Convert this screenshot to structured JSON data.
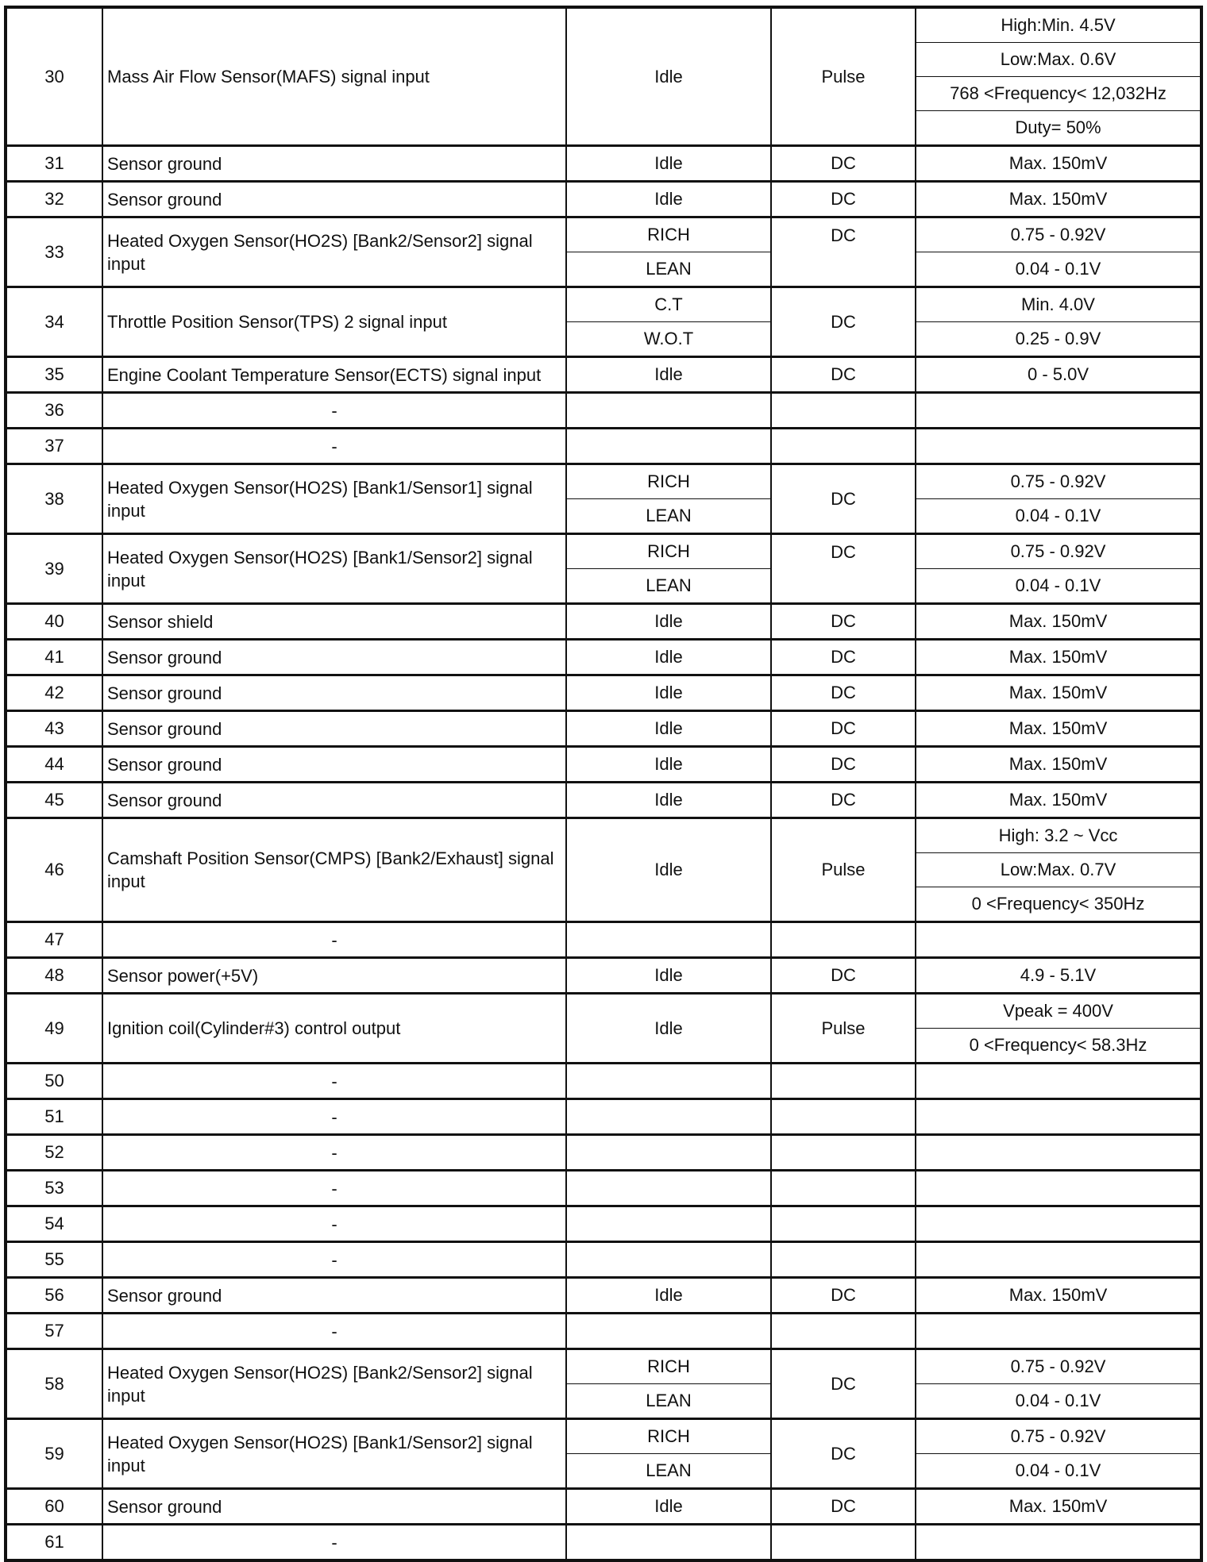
{
  "rows": [
    {
      "pin": "30",
      "desc": "Mass Air Flow Sensor(MAFS) signal input",
      "cond": [
        "Idle"
      ],
      "type": [
        "Pulse"
      ],
      "values": [
        "High:Min. 4.5V",
        "Low:Max. 0.6V",
        "768 <Frequency< 12,032Hz",
        "Duty= 50%"
      ]
    },
    {
      "pin": "31",
      "desc": "Sensor ground",
      "cond": [
        "Idle"
      ],
      "type": [
        "DC"
      ],
      "values": [
        "Max. 150mV"
      ]
    },
    {
      "pin": "32",
      "desc": "Sensor ground",
      "cond": [
        "Idle"
      ],
      "type": [
        "DC"
      ],
      "values": [
        "Max. 150mV"
      ]
    },
    {
      "pin": "33",
      "desc": "Heated Oxygen Sensor(HO2S) [Bank2/Sensor2] signal input",
      "cond": [
        "RICH",
        "LEAN"
      ],
      "type": [
        "DC",
        ""
      ],
      "values": [
        "0.75 - 0.92V",
        "0.04 - 0.1V"
      ]
    },
    {
      "pin": "34",
      "desc": "Throttle Position Sensor(TPS) 2 signal input",
      "cond": [
        "C.T",
        "W.O.T"
      ],
      "type": [
        "DC"
      ],
      "values": [
        "Min. 4.0V",
        "0.25 - 0.9V"
      ]
    },
    {
      "pin": "35",
      "desc": "Engine Coolant Temperature Sensor(ECTS) signal input",
      "cond": [
        "Idle"
      ],
      "type": [
        "DC"
      ],
      "values": [
        "0 - 5.0V"
      ]
    },
    {
      "pin": "36",
      "desc": "-",
      "cond": [
        ""
      ],
      "type": [
        ""
      ],
      "values": [
        ""
      ]
    },
    {
      "pin": "37",
      "desc": "-",
      "cond": [
        ""
      ],
      "type": [
        ""
      ],
      "values": [
        ""
      ]
    },
    {
      "pin": "38",
      "desc": "Heated Oxygen Sensor(HO2S) [Bank1/Sensor1] signal input",
      "cond": [
        "RICH",
        "LEAN"
      ],
      "type": [
        "DC"
      ],
      "values": [
        "0.75 - 0.92V",
        "0.04 - 0.1V"
      ]
    },
    {
      "pin": "39",
      "desc": "Heated Oxygen Sensor(HO2S) [Bank1/Sensor2] signal input",
      "cond": [
        "RICH",
        "LEAN"
      ],
      "type": [
        "DC",
        ""
      ],
      "values": [
        "0.75 - 0.92V",
        "0.04 - 0.1V"
      ]
    },
    {
      "pin": "40",
      "desc": "Sensor shield",
      "cond": [
        "Idle"
      ],
      "type": [
        "DC"
      ],
      "values": [
        "Max. 150mV"
      ]
    },
    {
      "pin": "41",
      "desc": "Sensor ground",
      "cond": [
        "Idle"
      ],
      "type": [
        "DC"
      ],
      "values": [
        "Max. 150mV"
      ]
    },
    {
      "pin": "42",
      "desc": "Sensor ground",
      "cond": [
        "Idle"
      ],
      "type": [
        "DC"
      ],
      "values": [
        "Max. 150mV"
      ]
    },
    {
      "pin": "43",
      "desc": "Sensor ground",
      "cond": [
        "Idle"
      ],
      "type": [
        "DC"
      ],
      "values": [
        "Max. 150mV"
      ]
    },
    {
      "pin": "44",
      "desc": "Sensor ground",
      "cond": [
        "Idle"
      ],
      "type": [
        "DC"
      ],
      "values": [
        "Max. 150mV"
      ]
    },
    {
      "pin": "45",
      "desc": "Sensor ground",
      "cond": [
        "Idle"
      ],
      "type": [
        "DC"
      ],
      "values": [
        "Max. 150mV"
      ]
    },
    {
      "pin": "46",
      "desc": "Camshaft Position Sensor(CMPS) [Bank2/Exhaust] signal input",
      "cond": [
        "Idle"
      ],
      "type": [
        "Pulse"
      ],
      "values": [
        "High: 3.2 ~ Vcc",
        "Low:Max. 0.7V",
        "0 <Frequency< 350Hz"
      ]
    },
    {
      "pin": "47",
      "desc": "-",
      "cond": [
        ""
      ],
      "type": [
        ""
      ],
      "values": [
        ""
      ]
    },
    {
      "pin": "48",
      "desc": "Sensor power(+5V)",
      "cond": [
        "Idle"
      ],
      "type": [
        "DC"
      ],
      "values": [
        "4.9 - 5.1V"
      ]
    },
    {
      "pin": "49",
      "desc": "Ignition coil(Cylinder#3) control output",
      "cond": [
        "Idle"
      ],
      "type": [
        "Pulse"
      ],
      "values": [
        "Vpeak = 400V",
        "0 <Frequency< 58.3Hz"
      ]
    },
    {
      "pin": "50",
      "desc": "-",
      "cond": [
        ""
      ],
      "type": [
        ""
      ],
      "values": [
        ""
      ]
    },
    {
      "pin": "51",
      "desc": "-",
      "cond": [
        ""
      ],
      "type": [
        ""
      ],
      "values": [
        ""
      ]
    },
    {
      "pin": "52",
      "desc": "-",
      "cond": [
        ""
      ],
      "type": [
        ""
      ],
      "values": [
        ""
      ]
    },
    {
      "pin": "53",
      "desc": "-",
      "cond": [
        ""
      ],
      "type": [
        ""
      ],
      "values": [
        ""
      ]
    },
    {
      "pin": "54",
      "desc": "-",
      "cond": [
        ""
      ],
      "type": [
        ""
      ],
      "values": [
        ""
      ]
    },
    {
      "pin": "55",
      "desc": "-",
      "cond": [
        ""
      ],
      "type": [
        ""
      ],
      "values": [
        ""
      ]
    },
    {
      "pin": "56",
      "desc": "Sensor ground",
      "cond": [
        "Idle"
      ],
      "type": [
        "DC"
      ],
      "values": [
        "Max. 150mV"
      ]
    },
    {
      "pin": "57",
      "desc": "-",
      "cond": [
        ""
      ],
      "type": [
        ""
      ],
      "values": [
        ""
      ]
    },
    {
      "pin": "58",
      "desc": "Heated Oxygen Sensor(HO2S) [Bank2/Sensor2] signal input",
      "cond": [
        "RICH",
        "LEAN"
      ],
      "type": [
        "DC"
      ],
      "values": [
        "0.75 - 0.92V",
        "0.04 - 0.1V"
      ]
    },
    {
      "pin": "59",
      "desc": "Heated Oxygen Sensor(HO2S) [Bank1/Sensor2] signal input",
      "cond": [
        "RICH",
        "LEAN"
      ],
      "type": [
        "DC"
      ],
      "values": [
        "0.75 - 0.92V",
        "0.04 - 0.1V"
      ]
    },
    {
      "pin": "60",
      "desc": "Sensor ground",
      "cond": [
        "Idle"
      ],
      "type": [
        "DC"
      ],
      "values": [
        "Max. 150mV"
      ]
    },
    {
      "pin": "61",
      "desc": "-",
      "cond": [
        ""
      ],
      "type": [
        ""
      ],
      "values": [
        ""
      ]
    }
  ]
}
